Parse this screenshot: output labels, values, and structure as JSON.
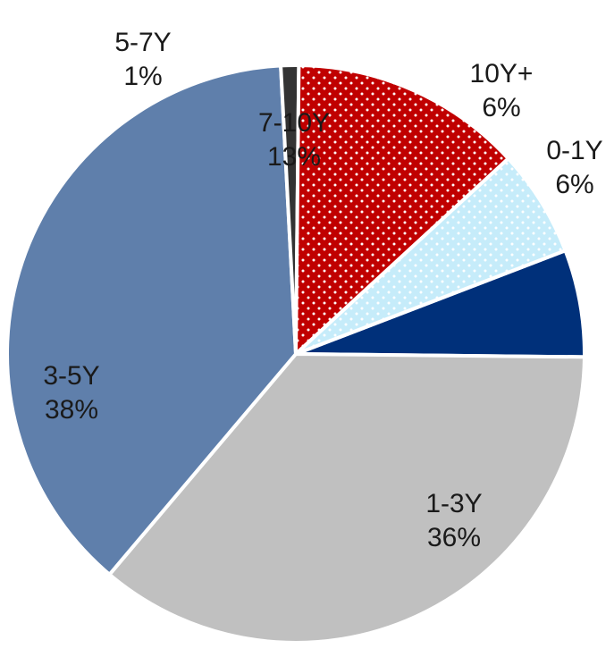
{
  "chart_data": {
    "type": "pie",
    "start_angle_deg": 69,
    "direction": "clockwise",
    "slices": [
      {
        "label": "0-1Y",
        "value": 6,
        "value_label": "6%",
        "color": "#00307a"
      },
      {
        "label": "1-3Y",
        "value": 36,
        "value_label": "36%",
        "color": "#c0c0c0"
      },
      {
        "label": "3-5Y",
        "value": 38,
        "value_label": "38%",
        "color": "#5f7fab"
      },
      {
        "label": "5-7Y",
        "value": 1,
        "value_label": "1%",
        "color": "#333333"
      },
      {
        "label": "7-10Y",
        "value": 13,
        "value_label": "13%",
        "color": "#c00000",
        "pattern": "dotted",
        "pattern_color": "#ffffff"
      },
      {
        "label": "10Y+",
        "value": 6,
        "value_label": "6%",
        "color": "#c6ecfa",
        "pattern": "dotted",
        "pattern_color": "#ffffff"
      }
    ]
  }
}
